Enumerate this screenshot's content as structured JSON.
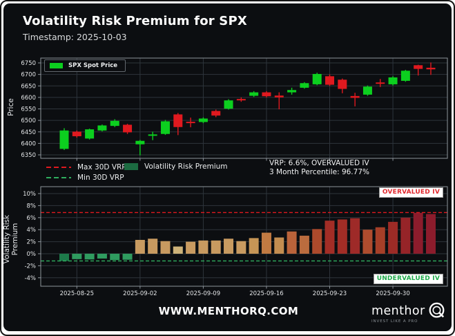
{
  "header": {
    "title": "Volatility Risk Premium for SPX",
    "subtitle": "Timestamp: 2025-10-03"
  },
  "legends": {
    "spx_spot": "SPX Spot Price",
    "max30": "Max 30D VRP",
    "min30": "Min 30D VRP",
    "vrp": "Volatility Risk Premium"
  },
  "annotation": {
    "line1": "VRP: 6.6%, OVERVALUED IV",
    "line2": "3 Month Percentile: 96.77%"
  },
  "badges": {
    "overvalued": "OVERVALUED IV",
    "undervalued": "UNDERVALUED IV"
  },
  "footer": {
    "site": "WWW.MENTHORQ.COM",
    "brand": "menthor",
    "tagline": "INVEST LIKE A PRO"
  },
  "colors": {
    "figure_bg": "#0c0e11",
    "grid": "#2e353c",
    "axis": "#8e959c",
    "tick_text": "#e4e6e8",
    "candle_up": "#0ccf1f",
    "candle_down": "#e0191f",
    "max_line": "#e0191f",
    "min_line": "#2fae5e",
    "vrp_swatch": "#1c6b41",
    "overvalued_text": "#e0282d",
    "undervalued_text": "#1faa4b"
  },
  "chart_data": [
    {
      "type": "candlestick",
      "name": "spx-spot-price",
      "ylabel": "Price",
      "legend": "SPX Spot Price",
      "ylim": [
        6335,
        6771
      ],
      "yticks": [
        6750,
        6700,
        6650,
        6600,
        6550,
        6500,
        6450,
        6400,
        6350
      ],
      "grid": true,
      "columns": [
        "date",
        "open",
        "high",
        "low",
        "close"
      ],
      "candles": [
        [
          "2025-08-22",
          6376,
          6466,
          6371,
          6456
        ],
        [
          "2025-08-25",
          6451,
          6456,
          6425,
          6431
        ],
        [
          "2025-08-26",
          6421,
          6464,
          6417,
          6461
        ],
        [
          "2025-08-27",
          6456,
          6482,
          6452,
          6478
        ],
        [
          "2025-08-28",
          6476,
          6505,
          6471,
          6498
        ],
        [
          "2025-08-29",
          6481,
          6485,
          6441,
          6448
        ],
        [
          "2025-09-02",
          6396,
          6415,
          6348,
          6411
        ],
        [
          "2025-09-03",
          6433,
          6451,
          6414,
          6439
        ],
        [
          "2025-09-04",
          6441,
          6502,
          6437,
          6496
        ],
        [
          "2025-09-05",
          6526,
          6532,
          6436,
          6471
        ],
        [
          "2025-09-08",
          6494,
          6512,
          6470,
          6488
        ],
        [
          "2025-09-09",
          6493,
          6513,
          6488,
          6508
        ],
        [
          "2025-09-10",
          6541,
          6547,
          6514,
          6521
        ],
        [
          "2025-09-11",
          6551,
          6592,
          6547,
          6587
        ],
        [
          "2025-09-12",
          6593,
          6600,
          6581,
          6587
        ],
        [
          "2025-09-15",
          6607,
          6627,
          6602,
          6622
        ],
        [
          "2025-09-16",
          6622,
          6627,
          6600,
          6605
        ],
        [
          "2025-09-17",
          6608,
          6622,
          6548,
          6600
        ],
        [
          "2025-09-18",
          6622,
          6642,
          6612,
          6632
        ],
        [
          "2025-09-19",
          6642,
          6666,
          6638,
          6662
        ],
        [
          "2025-09-22",
          6657,
          6707,
          6653,
          6702
        ],
        [
          "2025-09-23",
          6692,
          6700,
          6650,
          6655
        ],
        [
          "2025-09-24",
          6677,
          6682,
          6618,
          6637
        ],
        [
          "2025-09-25",
          6606,
          6620,
          6561,
          6598
        ],
        [
          "2025-09-26",
          6612,
          6652,
          6607,
          6647
        ],
        [
          "2025-09-29",
          6665,
          6680,
          6645,
          6659
        ],
        [
          "2025-09-30",
          6657,
          6692,
          6652,
          6687
        ],
        [
          "2025-10-01",
          6672,
          6720,
          6668,
          6716
        ],
        [
          "2025-10-02",
          6740,
          6742,
          6695,
          6724
        ],
        [
          "2025-10-03",
          6729,
          6752,
          6698,
          6722
        ]
      ]
    },
    {
      "type": "bar",
      "name": "volatility-risk-premium",
      "ylabel": "Volatility Risk Premium",
      "ylim": [
        -5.4,
        11.2
      ],
      "ytick_labels": [
        "10%",
        "8%",
        "6%",
        "4%",
        "2%",
        "0%",
        "-2%",
        "-4%"
      ],
      "ytick_values": [
        10,
        8,
        6,
        4,
        2,
        0,
        -2,
        -4
      ],
      "grid": true,
      "max_30d_vrp": 6.85,
      "min_30d_vrp": -1.2,
      "current_vrp_pct": 6.6,
      "three_month_percentile": 96.77,
      "columns": [
        "date",
        "vrp_pct",
        "color"
      ],
      "bars": [
        [
          "2025-08-22",
          -1.2,
          "#1d7a4a"
        ],
        [
          "2025-08-25",
          -0.9,
          "#2f9b5f"
        ],
        [
          "2025-08-26",
          -0.95,
          "#2f9b5f"
        ],
        [
          "2025-08-27",
          -0.8,
          "#2f9b5f"
        ],
        [
          "2025-08-28",
          -1.05,
          "#2f9b5f"
        ],
        [
          "2025-08-29",
          -1.0,
          "#2f9b5f"
        ],
        [
          "2025-09-02",
          2.3,
          "#c89a60"
        ],
        [
          "2025-09-03",
          2.5,
          "#c89a60"
        ],
        [
          "2025-09-04",
          2.1,
          "#c89a60"
        ],
        [
          "2025-09-05",
          1.2,
          "#cdb279"
        ],
        [
          "2025-09-08",
          2.0,
          "#c89a60"
        ],
        [
          "2025-09-09",
          2.2,
          "#c89a60"
        ],
        [
          "2025-09-10",
          2.2,
          "#c89a60"
        ],
        [
          "2025-09-11",
          2.5,
          "#c89a60"
        ],
        [
          "2025-09-12",
          2.1,
          "#c89a60"
        ],
        [
          "2025-09-15",
          2.6,
          "#c69556"
        ],
        [
          "2025-09-16",
          3.5,
          "#c17a42"
        ],
        [
          "2025-09-17",
          2.7,
          "#c38d50"
        ],
        [
          "2025-09-18",
          3.7,
          "#ba633a"
        ],
        [
          "2025-09-19",
          3.0,
          "#bb6c3e"
        ],
        [
          "2025-09-22",
          4.1,
          "#ad4a2c"
        ],
        [
          "2025-09-23",
          5.5,
          "#a22d26"
        ],
        [
          "2025-09-24",
          5.7,
          "#a22d26"
        ],
        [
          "2025-09-25",
          5.9,
          "#9e2a28"
        ],
        [
          "2025-09-26",
          4.0,
          "#ae4c2e"
        ],
        [
          "2025-09-29",
          4.4,
          "#a63f28"
        ],
        [
          "2025-09-30",
          5.3,
          "#9c2b26"
        ],
        [
          "2025-10-01",
          6.0,
          "#962428"
        ],
        [
          "2025-10-02",
          6.8,
          "#8c1c2c"
        ],
        [
          "2025-10-03",
          6.6,
          "#8c1c2c"
        ]
      ],
      "xticks": [
        {
          "label": "2025-08-25",
          "index": 1
        },
        {
          "label": "2025-09-02",
          "index": 6
        },
        {
          "label": "2025-09-09",
          "index": 11
        },
        {
          "label": "2025-09-16",
          "index": 16
        },
        {
          "label": "2025-09-23",
          "index": 21
        },
        {
          "label": "2025-09-30",
          "index": 26
        }
      ]
    }
  ]
}
